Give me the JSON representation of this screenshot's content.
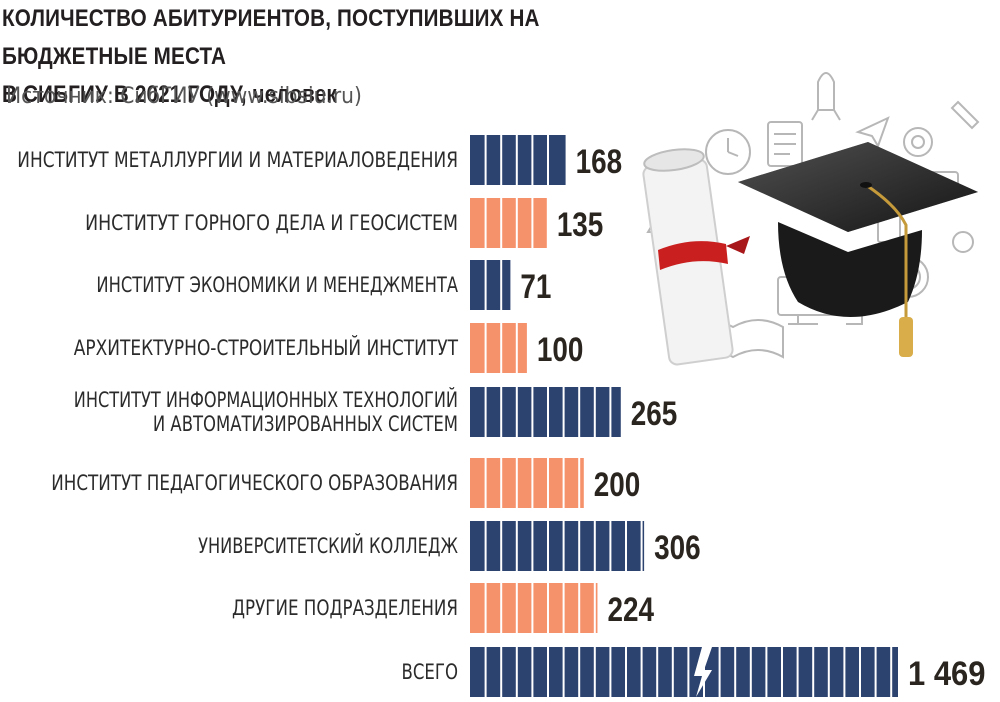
{
  "title_line1": "КОЛИЧЕСТВО АБИТУРИЕНТОВ, ПОСТУПИВШИХ НА БЮДЖЕТНЫЕ МЕСТА",
  "title_line2": "В СИБГИУ В 2021 ГОДУ,",
  "title_unit": "человек",
  "source": "Источник: СибГИУ (www.sibsiu.ru)",
  "colors": {
    "navy": "#2c4370",
    "salmon": "#f6926b",
    "text": "#2b2520"
  },
  "chart_data": {
    "type": "bar",
    "orientation": "horizontal",
    "categories": [
      [
        "ИНСТИТУТ МЕТАЛЛУРГИИ И МАТЕРИАЛОВЕДЕНИЯ"
      ],
      [
        "ИНСТИТУТ ГОРНОГО ДЕЛА И ГЕОСИСТЕМ"
      ],
      [
        "ИНСТИТУТ ЭКОНОМИКИ И МЕНЕДЖМЕНТА"
      ],
      [
        "АРХИТЕКТУРНО-СТРОИТЕЛЬНЫЙ ИНСТИТУТ"
      ],
      [
        "ИНСТИТУТ ИНФОРМАЦИОННЫХ ТЕХНОЛОГИЙ",
        "И АВТОМАТИЗИРОВАННЫХ СИСТЕМ"
      ],
      [
        "ИНСТИТУТ ПЕДАГОГИЧЕСКОГО ОБРАЗОВАНИЯ"
      ],
      [
        "УНИВЕРСИТЕТСКИЙ КОЛЛЕДЖ"
      ],
      [
        "ДРУГИЕ ПОДРАЗДЕЛЕНИЯ"
      ],
      [
        "ВСЕГО"
      ]
    ],
    "values": [
      168,
      135,
      71,
      100,
      265,
      200,
      306,
      224,
      1469
    ],
    "value_labels": [
      "168",
      "135",
      "71",
      "100",
      "265",
      "200",
      "306",
      "224",
      "1 469"
    ],
    "bar_colors": [
      "navy",
      "salmon",
      "navy",
      "salmon",
      "navy",
      "salmon",
      "navy",
      "salmon",
      "navy"
    ],
    "axis_break_on_last_bar": true
  }
}
